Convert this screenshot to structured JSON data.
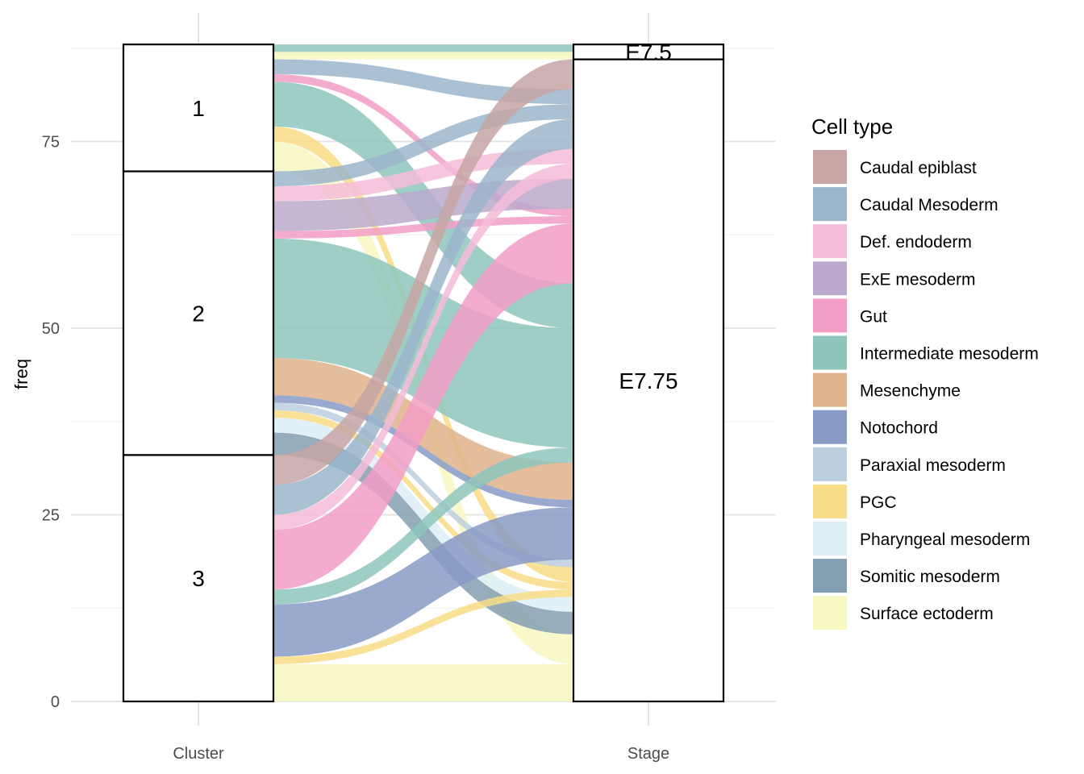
{
  "chart_data": {
    "type": "alluvial",
    "ylabel": "freq",
    "xlabel": "",
    "axes": [
      "Cluster",
      "Stage"
    ],
    "ylim": [
      0,
      88
    ],
    "yticks": [
      0,
      25,
      50,
      75
    ],
    "grid": true,
    "legend_title": "Cell type",
    "legend_position": "right",
    "cell_types": [
      {
        "name": "Caudal epiblast",
        "color": "#c7a6a4"
      },
      {
        "name": "Caudal Mesoderm",
        "color": "#9bb5cb"
      },
      {
        "name": "Def. endoderm",
        "color": "#f4bcd8"
      },
      {
        "name": "ExE mesoderm",
        "color": "#bbaacd"
      },
      {
        "name": "Gut",
        "color": "#f29ec6"
      },
      {
        "name": "Intermediate mesoderm",
        "color": "#8ec6bd"
      },
      {
        "name": "Mesenchyme",
        "color": "#dfb38b"
      },
      {
        "name": "Notochord",
        "color": "#889ac6"
      },
      {
        "name": "Paraxial mesoderm",
        "color": "#bccfe0"
      },
      {
        "name": "PGC",
        "color": "#f8dd86"
      },
      {
        "name": "Pharyngeal mesoderm",
        "color": "#ddeef7"
      },
      {
        "name": "Somitic mesoderm",
        "color": "#839fb1"
      },
      {
        "name": "Surface ectoderm",
        "color": "#f8f7c2"
      }
    ],
    "strata": {
      "Cluster": [
        {
          "label": "1",
          "value": 17
        },
        {
          "label": "2",
          "value": 38
        },
        {
          "label": "3",
          "value": 33
        }
      ],
      "Stage": [
        {
          "label": "E7.5",
          "value": 2
        },
        {
          "label": "E7.75",
          "value": 86
        }
      ]
    },
    "flows": [
      {
        "cluster": "1",
        "stage": "E7.5",
        "cell_type": "Intermediate mesoderm",
        "value": 1
      },
      {
        "cluster": "1",
        "stage": "E7.5",
        "cell_type": "Surface ectoderm",
        "value": 1
      },
      {
        "cluster": "1",
        "stage": "E7.75",
        "cell_type": "Caudal Mesoderm",
        "value": 2
      },
      {
        "cluster": "1",
        "stage": "E7.75",
        "cell_type": "Gut",
        "value": 1
      },
      {
        "cluster": "1",
        "stage": "E7.75",
        "cell_type": "Intermediate mesoderm",
        "value": 6
      },
      {
        "cluster": "1",
        "stage": "E7.75",
        "cell_type": "PGC",
        "value": 2
      },
      {
        "cluster": "1",
        "stage": "E7.75",
        "cell_type": "Surface ectoderm",
        "value": 4
      },
      {
        "cluster": "2",
        "stage": "E7.75",
        "cell_type": "Caudal Mesoderm",
        "value": 2
      },
      {
        "cluster": "2",
        "stage": "E7.75",
        "cell_type": "Def. endoderm",
        "value": 2
      },
      {
        "cluster": "2",
        "stage": "E7.75",
        "cell_type": "ExE mesoderm",
        "value": 4
      },
      {
        "cluster": "2",
        "stage": "E7.75",
        "cell_type": "Gut",
        "value": 1
      },
      {
        "cluster": "2",
        "stage": "E7.75",
        "cell_type": "Intermediate mesoderm",
        "value": 16
      },
      {
        "cluster": "2",
        "stage": "E7.75",
        "cell_type": "Mesenchyme",
        "value": 5
      },
      {
        "cluster": "2",
        "stage": "E7.75",
        "cell_type": "Notochord",
        "value": 1
      },
      {
        "cluster": "2",
        "stage": "E7.75",
        "cell_type": "Paraxial mesoderm",
        "value": 1
      },
      {
        "cluster": "2",
        "stage": "E7.75",
        "cell_type": "PGC",
        "value": 1
      },
      {
        "cluster": "2",
        "stage": "E7.75",
        "cell_type": "Pharyngeal mesoderm",
        "value": 2
      },
      {
        "cluster": "2",
        "stage": "E7.75",
        "cell_type": "Somitic mesoderm",
        "value": 3
      },
      {
        "cluster": "3",
        "stage": "E7.75",
        "cell_type": "Caudal epiblast",
        "value": 4
      },
      {
        "cluster": "3",
        "stage": "E7.75",
        "cell_type": "Caudal Mesoderm",
        "value": 4
      },
      {
        "cluster": "3",
        "stage": "E7.75",
        "cell_type": "Def. endoderm",
        "value": 2
      },
      {
        "cluster": "3",
        "stage": "E7.75",
        "cell_type": "Gut",
        "value": 8
      },
      {
        "cluster": "3",
        "stage": "E7.75",
        "cell_type": "Intermediate mesoderm",
        "value": 2
      },
      {
        "cluster": "3",
        "stage": "E7.75",
        "cell_type": "Notochord",
        "value": 7
      },
      {
        "cluster": "3",
        "stage": "E7.75",
        "cell_type": "PGC",
        "value": 1
      },
      {
        "cluster": "3",
        "stage": "E7.75",
        "cell_type": "Surface ectoderm",
        "value": 5
      }
    ]
  }
}
